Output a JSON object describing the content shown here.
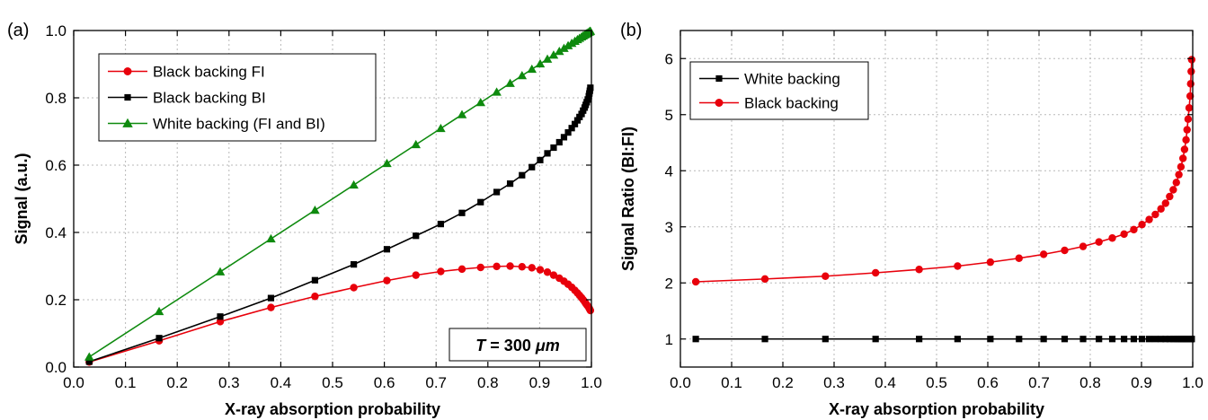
{
  "chart_data": [
    {
      "type": "line",
      "panel_label": "(a)",
      "xlabel": "X-ray absorption probability",
      "ylabel": "Signal (a.u.)",
      "xlim": [
        0.0,
        1.0
      ],
      "ylim": [
        0.0,
        1.0
      ],
      "xticks": [
        0.0,
        0.1,
        0.2,
        0.3,
        0.4,
        0.5,
        0.6,
        0.7,
        0.8,
        0.9,
        1.0
      ],
      "yticks": [
        0.0,
        0.2,
        0.4,
        0.6,
        0.8,
        1.0
      ],
      "xtick_labels": [
        "0.0",
        "0.1",
        "0.2",
        "0.3",
        "0.4",
        "0.5",
        "0.6",
        "0.7",
        "0.8",
        "0.9",
        "1.0"
      ],
      "ytick_labels": [
        "0.0",
        "0.2",
        "0.4",
        "0.6",
        "0.8",
        "1.0"
      ],
      "grid": true,
      "legend_position": "top-left",
      "annotation": {
        "italic": "T",
        "text": " = 300 ",
        "unit": "μm",
        "position": "bottom-right"
      },
      "series": [
        {
          "name": "Black backing FI",
          "color": "#e8000b",
          "marker": "circle",
          "x": [
            0.03,
            0.165,
            0.283,
            0.381,
            0.466,
            0.541,
            0.605,
            0.661,
            0.709,
            0.75,
            0.786,
            0.817,
            0.843,
            0.866,
            0.885,
            0.901,
            0.915,
            0.927,
            0.938,
            0.947,
            0.955,
            0.962,
            0.968,
            0.973,
            0.977,
            0.981,
            0.984,
            0.987,
            0.989,
            0.991,
            0.993,
            0.995,
            0.996,
            0.997,
            0.998
          ],
          "y": [
            0.015,
            0.078,
            0.135,
            0.177,
            0.21,
            0.236,
            0.257,
            0.273,
            0.284,
            0.291,
            0.296,
            0.299,
            0.3,
            0.298,
            0.295,
            0.289,
            0.282,
            0.273,
            0.264,
            0.255,
            0.246,
            0.237,
            0.228,
            0.22,
            0.213,
            0.206,
            0.2,
            0.194,
            0.189,
            0.185,
            0.181,
            0.177,
            0.174,
            0.171,
            0.168
          ]
        },
        {
          "name": "Black backing BI",
          "color": "#000000",
          "marker": "square",
          "x": [
            0.03,
            0.165,
            0.283,
            0.381,
            0.466,
            0.541,
            0.605,
            0.661,
            0.709,
            0.75,
            0.786,
            0.817,
            0.843,
            0.866,
            0.885,
            0.901,
            0.915,
            0.927,
            0.938,
            0.947,
            0.955,
            0.962,
            0.968,
            0.973,
            0.977,
            0.981,
            0.984,
            0.987,
            0.989,
            0.991,
            0.993,
            0.995,
            0.996,
            0.997,
            0.998
          ],
          "y": [
            0.016,
            0.086,
            0.15,
            0.205,
            0.258,
            0.305,
            0.35,
            0.39,
            0.425,
            0.458,
            0.49,
            0.52,
            0.545,
            0.57,
            0.594,
            0.615,
            0.635,
            0.652,
            0.668,
            0.683,
            0.697,
            0.71,
            0.722,
            0.733,
            0.743,
            0.752,
            0.762,
            0.771,
            0.779,
            0.787,
            0.795,
            0.805,
            0.813,
            0.821,
            0.83
          ]
        },
        {
          "name": "White backing (FI and BI)",
          "color": "#0e8a0e",
          "marker": "triangle",
          "x": [
            0.03,
            0.165,
            0.283,
            0.381,
            0.466,
            0.541,
            0.605,
            0.661,
            0.709,
            0.75,
            0.786,
            0.817,
            0.843,
            0.866,
            0.885,
            0.901,
            0.915,
            0.927,
            0.938,
            0.947,
            0.955,
            0.962,
            0.968,
            0.973,
            0.977,
            0.981,
            0.984,
            0.987,
            0.989,
            0.991,
            0.993,
            0.995,
            0.996,
            0.997,
            0.998
          ],
          "y": [
            0.03,
            0.165,
            0.283,
            0.381,
            0.466,
            0.541,
            0.605,
            0.661,
            0.709,
            0.75,
            0.786,
            0.817,
            0.843,
            0.866,
            0.885,
            0.901,
            0.915,
            0.927,
            0.938,
            0.947,
            0.955,
            0.962,
            0.968,
            0.973,
            0.977,
            0.981,
            0.984,
            0.987,
            0.989,
            0.991,
            0.993,
            0.995,
            0.996,
            0.997,
            0.998
          ]
        }
      ]
    },
    {
      "type": "line",
      "panel_label": "(b)",
      "xlabel": "X-ray absorption probability",
      "ylabel": "Signal Ratio (BI:FI)",
      "xlim": [
        0.0,
        1.0
      ],
      "ylim": [
        0.5,
        6.5
      ],
      "xticks": [
        0.0,
        0.1,
        0.2,
        0.3,
        0.4,
        0.5,
        0.6,
        0.7,
        0.8,
        0.9,
        1.0
      ],
      "yticks": [
        1,
        2,
        3,
        4,
        5,
        6
      ],
      "xtick_labels": [
        "0.0",
        "0.1",
        "0.2",
        "0.3",
        "0.4",
        "0.5",
        "0.6",
        "0.7",
        "0.8",
        "0.9",
        "1.0"
      ],
      "ytick_labels": [
        "1",
        "2",
        "3",
        "4",
        "5",
        "6"
      ],
      "grid": true,
      "legend_position": "top-left",
      "series": [
        {
          "name": "White backing",
          "color": "#000000",
          "marker": "square",
          "x": [
            0.03,
            0.165,
            0.283,
            0.381,
            0.466,
            0.541,
            0.605,
            0.661,
            0.709,
            0.75,
            0.786,
            0.817,
            0.843,
            0.866,
            0.885,
            0.901,
            0.915,
            0.927,
            0.938,
            0.947,
            0.955,
            0.962,
            0.968,
            0.973,
            0.977,
            0.981,
            0.984,
            0.987,
            0.989,
            0.991,
            0.993,
            0.995,
            0.996,
            0.997,
            0.998
          ],
          "y": [
            1,
            1,
            1,
            1,
            1,
            1,
            1,
            1,
            1,
            1,
            1,
            1,
            1,
            1,
            1,
            1,
            1,
            1,
            1,
            1,
            1,
            1,
            1,
            1,
            1,
            1,
            1,
            1,
            1,
            1,
            1,
            1,
            1,
            1,
            1
          ]
        },
        {
          "name": "Black backing",
          "color": "#e8000b",
          "marker": "circle",
          "x": [
            0.03,
            0.165,
            0.283,
            0.381,
            0.466,
            0.541,
            0.605,
            0.661,
            0.709,
            0.75,
            0.786,
            0.817,
            0.843,
            0.866,
            0.885,
            0.901,
            0.915,
            0.927,
            0.938,
            0.947,
            0.955,
            0.962,
            0.968,
            0.973,
            0.977,
            0.981,
            0.984,
            0.987,
            0.989,
            0.991,
            0.993,
            0.995,
            0.996,
            0.997,
            0.998
          ],
          "y": [
            2.02,
            2.07,
            2.12,
            2.18,
            2.24,
            2.3,
            2.37,
            2.44,
            2.51,
            2.58,
            2.65,
            2.73,
            2.8,
            2.87,
            2.95,
            3.04,
            3.13,
            3.22,
            3.32,
            3.42,
            3.54,
            3.66,
            3.79,
            3.93,
            4.07,
            4.22,
            4.38,
            4.55,
            4.73,
            4.92,
            5.12,
            5.33,
            5.55,
            5.77,
            5.98
          ]
        }
      ]
    }
  ]
}
